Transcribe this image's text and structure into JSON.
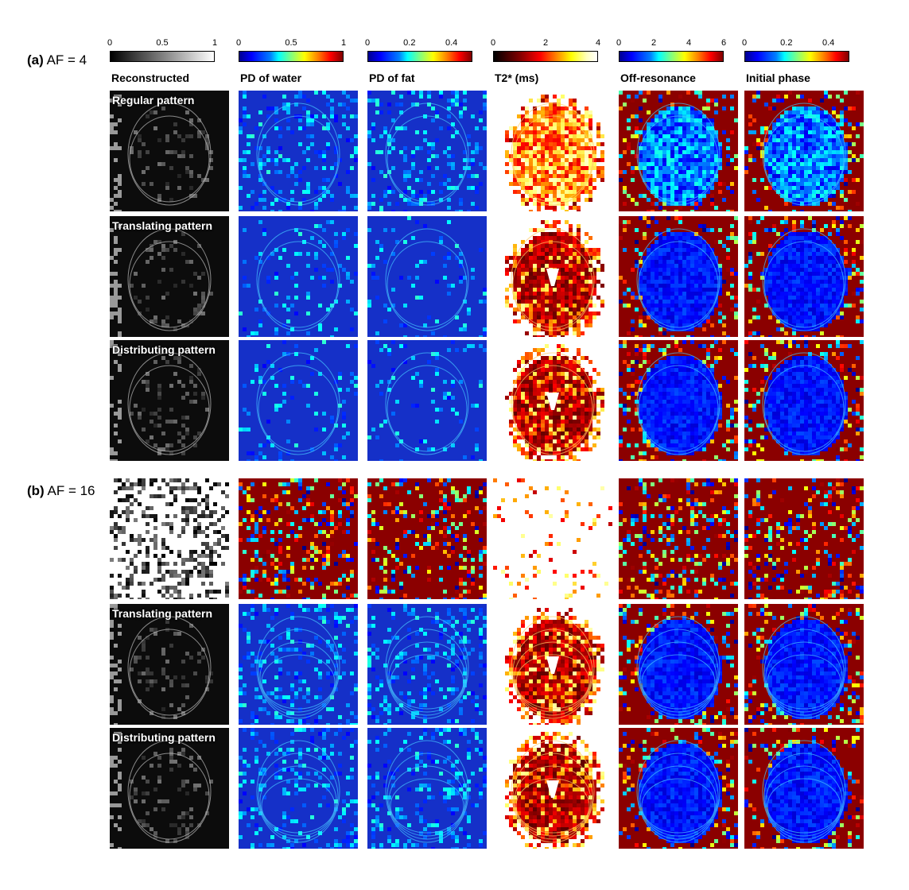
{
  "sections": [
    {
      "prefix": "(a)",
      "text": " AF = 4"
    },
    {
      "prefix": "(b)",
      "text": " AF = 16"
    }
  ],
  "columns": [
    {
      "title": "Reconstructed",
      "cmap": "gray",
      "ticks": [
        "0",
        "0.5",
        "1"
      ]
    },
    {
      "title": "PD of water",
      "cmap": "jet",
      "ticks": [
        "0",
        "0.5",
        "1"
      ]
    },
    {
      "title": "PD of fat",
      "cmap": "jet",
      "ticks": [
        "0",
        "0.2",
        "0.4"
      ]
    },
    {
      "title": "T2* (ms)",
      "cmap": "hot",
      "ticks": [
        "0",
        "2",
        "4"
      ]
    },
    {
      "title": "Off-resonance",
      "cmap": "jet",
      "ticks": [
        "0",
        "2",
        "4",
        "6"
      ]
    },
    {
      "title": "Initial  phase",
      "cmap": "jet",
      "ticks": [
        "0",
        "0.2",
        "0.4"
      ]
    }
  ],
  "row_labels": [
    "Regular pattern",
    "Translating pattern",
    "Distributing pattern",
    "",
    "Translating pattern",
    "Distributing pattern"
  ],
  "colors": {
    "jet_background_blue": "#1530c8",
    "hot_background_dark": "#5a0a0a",
    "noise_red": "#8b0000",
    "gray_dark": "#0c0c0c"
  }
}
